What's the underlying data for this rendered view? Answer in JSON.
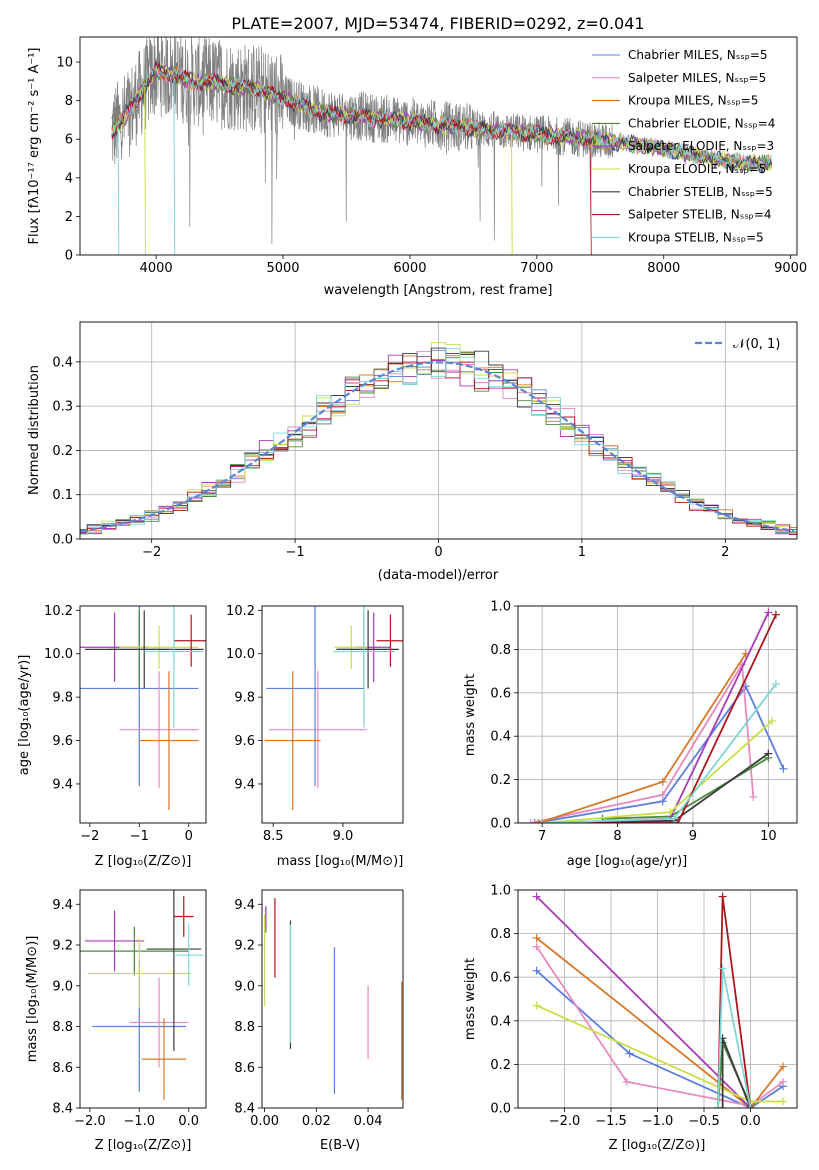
{
  "colors": {
    "chabrier_miles": "#5b7fe0",
    "salpeter_miles": "#e68ac0",
    "kroupa_miles": "#d8782a",
    "chabrier_elodie": "#4a8a3e",
    "salpeter_elodie": "#a93ab8",
    "kroupa_elodie": "#c9df4a",
    "chabrier_stelib": "#3b3b3b",
    "salpeter_stelib": "#b0141c",
    "kroupa_stelib": "#7fd6d6",
    "normal_curve": "#5b86d6"
  },
  "chart_data": [
    {
      "type": "line",
      "title": "PLATE=2007, MJD=53474, FIBERID=0292, z=0.041",
      "xlabel": "wavelength [Angstrom, rest frame]",
      "ylabel": "Flux [fλ10⁻¹⁷ erg cm⁻² s⁻¹ A⁻¹]",
      "xlim": [
        3400,
        9050
      ],
      "ylim": [
        0,
        11.3
      ],
      "xticks": [
        4000,
        5000,
        6000,
        7000,
        8000,
        9000
      ],
      "yticks": [
        0,
        2,
        4,
        6,
        8,
        10
      ],
      "grid": false,
      "legend_position": "top-right",
      "legend": [
        "Chabrier MILES, Nₛₛₚ=5",
        "Salpeter MILES, Nₛₛₚ=5",
        "Kroupa MILES, Nₛₛₚ=5",
        "Chabrier ELODIE, Nₛₛₚ=4",
        "Salpeter ELODIE, Nₛₛₚ=3",
        "Kroupa ELODIE, Nₛₛₚ=5",
        "Chabrier STELIB, Nₛₛₚ=5",
        "Salpeter STELIB, Nₛₛₚ=4",
        "Kroupa STELIB, Nₛₛₚ=5"
      ],
      "continuum": {
        "wavelength": [
          3650,
          3750,
          3900,
          4000,
          4100,
          4300,
          4500,
          4800,
          5000,
          5300,
          5600,
          6000,
          6300,
          6600,
          7000,
          7400,
          7700,
          8000,
          8300,
          8600,
          8850
        ],
        "flux": [
          6.4,
          7.1,
          8.6,
          9.6,
          9.4,
          9.0,
          8.9,
          8.6,
          8.1,
          7.4,
          7.2,
          6.9,
          6.7,
          6.5,
          6.3,
          6.0,
          5.8,
          5.5,
          5.1,
          4.8,
          4.7
        ]
      }
    },
    {
      "type": "line",
      "xlabel": "(data-model)/error",
      "ylabel": "Normed distribution",
      "xlim": [
        -2.5,
        2.5
      ],
      "ylim": [
        0,
        0.49
      ],
      "xticks": [
        -2,
        -1,
        0,
        1,
        2
      ],
      "yticks": [
        0.0,
        0.1,
        0.2,
        0.3,
        0.4
      ],
      "grid": true,
      "legend_position": "top-right",
      "legend": [
        "𝒩(0, 1)"
      ],
      "bin_width": 0.1
    },
    {
      "type": "scatter",
      "xlabel": "Z [log₁₀(Z/Z⊙)]",
      "ylabel": "age  [log₁₀(age/yr)]",
      "xlim": [
        -2.2,
        0.35
      ],
      "ylim": [
        9.22,
        10.22
      ],
      "xticks": [
        -2,
        -1,
        0
      ],
      "yticks": [
        9.4,
        9.6,
        9.8,
        10.0,
        10.2
      ],
      "grid": false,
      "crosses": [
        {
          "series": "chabrier_miles",
          "x": -1.0,
          "xerr": 1.2,
          "y": 9.84,
          "yerr": 0.45
        },
        {
          "series": "salpeter_miles",
          "x": -0.6,
          "xerr": 0.8,
          "y": 9.65,
          "yerr": 0.27
        },
        {
          "series": "kroupa_miles",
          "x": -0.4,
          "xerr": 0.6,
          "y": 9.6,
          "yerr": 0.32
        },
        {
          "series": "chabrier_elodie",
          "x": -1.0,
          "xerr": 0.6,
          "y": 10.02,
          "yerr": 0.18
        },
        {
          "series": "salpeter_elodie",
          "x": -1.5,
          "xerr": 0.7,
          "y": 10.03,
          "yerr": 0.16
        },
        {
          "series": "kroupa_elodie",
          "x": -0.6,
          "xerr": 0.8,
          "y": 10.03,
          "yerr": 0.1
        },
        {
          "series": "chabrier_stelib",
          "x": -0.9,
          "xerr": 1.2,
          "y": 10.02,
          "yerr": 0.18
        },
        {
          "series": "salpeter_stelib",
          "x": 0.05,
          "xerr": 0.35,
          "y": 10.06,
          "yerr": 0.12
        },
        {
          "series": "kroupa_stelib",
          "x": -0.3,
          "xerr": 0.6,
          "y": 10.01,
          "yerr": 0.35
        }
      ]
    },
    {
      "type": "scatter",
      "xlabel": "mass [log₁₀(M/M⊙)]",
      "xlim": [
        8.42,
        9.43
      ],
      "ylim": [
        9.22,
        10.22
      ],
      "xticks": [
        8.5,
        9.0
      ],
      "yticks": [
        9.4,
        9.6,
        9.8,
        10.0,
        10.2
      ],
      "grid": false,
      "crosses": [
        {
          "series": "chabrier_miles",
          "x": 8.8,
          "xerr": 0.35,
          "y": 9.84,
          "yerr": 0.45
        },
        {
          "series": "salpeter_miles",
          "x": 8.82,
          "xerr": 0.35,
          "y": 9.65,
          "yerr": 0.27
        },
        {
          "series": "kroupa_miles",
          "x": 8.64,
          "xerr": 0.2,
          "y": 9.6,
          "yerr": 0.32
        },
        {
          "series": "chabrier_elodie",
          "x": 9.15,
          "xerr": 0.2,
          "y": 10.02,
          "yerr": 0.18
        },
        {
          "series": "salpeter_elodie",
          "x": 9.22,
          "xerr": 0.12,
          "y": 10.03,
          "yerr": 0.16
        },
        {
          "series": "kroupa_elodie",
          "x": 9.06,
          "xerr": 0.12,
          "y": 10.03,
          "yerr": 0.1
        },
        {
          "series": "chabrier_stelib",
          "x": 9.18,
          "xerr": 0.22,
          "y": 10.02,
          "yerr": 0.18
        },
        {
          "series": "salpeter_stelib",
          "x": 9.34,
          "xerr": 0.1,
          "y": 10.06,
          "yerr": 0.12
        },
        {
          "series": "kroupa_stelib",
          "x": 9.15,
          "xerr": 0.22,
          "y": 10.01,
          "yerr": 0.35
        }
      ]
    },
    {
      "type": "line",
      "xlabel": "age  [log₁₀(age/yr)]",
      "ylabel": "mass weight",
      "xlim": [
        6.68,
        10.38
      ],
      "ylim": [
        0,
        1.0
      ],
      "xticks": [
        7,
        8,
        9,
        10
      ],
      "yticks": [
        0.0,
        0.2,
        0.4,
        0.6,
        0.8,
        1.0
      ],
      "grid": true,
      "series": [
        {
          "key": "chabrier_miles",
          "x": [
            6.9,
            8.6,
            9.7,
            10.2
          ],
          "y": [
            0.0,
            0.1,
            0.63,
            0.25
          ]
        },
        {
          "key": "salpeter_miles",
          "x": [
            6.85,
            8.6,
            9.65,
            9.8
          ],
          "y": [
            0.0,
            0.13,
            0.73,
            0.12
          ]
        },
        {
          "key": "kroupa_miles",
          "x": [
            6.95,
            8.6,
            9.7
          ],
          "y": [
            0.0,
            0.19,
            0.78
          ]
        },
        {
          "key": "chabrier_elodie",
          "x": [
            7.8,
            8.7,
            10.0
          ],
          "y": [
            0.02,
            0.03,
            0.3
          ]
        },
        {
          "key": "salpeter_elodie",
          "x": [
            7.0,
            8.7,
            10.0
          ],
          "y": [
            0.0,
            0.02,
            0.97
          ]
        },
        {
          "key": "kroupa_elodie",
          "x": [
            7.0,
            8.7,
            10.05
          ],
          "y": [
            0.0,
            0.05,
            0.47
          ]
        },
        {
          "key": "chabrier_stelib",
          "x": [
            7.0,
            8.75,
            10.0
          ],
          "y": [
            0.0,
            0.01,
            0.32
          ]
        },
        {
          "key": "salpeter_stelib",
          "x": [
            7.0,
            8.8,
            10.1
          ],
          "y": [
            0.0,
            0.0,
            0.96
          ]
        },
        {
          "key": "kroupa_stelib",
          "x": [
            7.0,
            8.75,
            10.1
          ],
          "y": [
            0.0,
            0.02,
            0.64
          ]
        }
      ]
    },
    {
      "type": "scatter",
      "xlabel": "Z [log₁₀(Z/Z⊙)]",
      "ylabel": "mass [log₁₀(M/M⊙)]",
      "xlim": [
        -2.2,
        0.35
      ],
      "ylim": [
        8.4,
        9.47
      ],
      "xticks": [
        -2,
        -1,
        0
      ],
      "yticks": [
        8.4,
        8.6,
        8.8,
        9.0,
        9.2,
        9.4
      ],
      "grid": false,
      "crosses": [
        {
          "series": "chabrier_miles",
          "x": -1.0,
          "xerr": 0.95,
          "y": 8.8,
          "yerr": 0.32
        },
        {
          "series": "salpeter_miles",
          "x": -0.6,
          "xerr": 0.6,
          "y": 8.82,
          "yerr": 0.22
        },
        {
          "series": "kroupa_miles",
          "x": -0.5,
          "xerr": 0.45,
          "y": 8.64,
          "yerr": 0.2
        },
        {
          "series": "chabrier_elodie",
          "x": -1.1,
          "xerr": 1.1,
          "y": 9.17,
          "yerr": 0.12
        },
        {
          "series": "salpeter_elodie",
          "x": -1.5,
          "xerr": 0.6,
          "y": 9.22,
          "yerr": 0.15
        },
        {
          "series": "kroupa_elodie",
          "x": -1.0,
          "xerr": 1.05,
          "y": 9.06,
          "yerr": 0.17
        },
        {
          "series": "chabrier_stelib",
          "x": -0.3,
          "xerr": 0.55,
          "y": 9.18,
          "yerr": 0.5
        },
        {
          "series": "salpeter_stelib",
          "x": -0.1,
          "xerr": 0.2,
          "y": 9.34,
          "yerr": 0.1
        },
        {
          "series": "kroupa_stelib",
          "x": 0.0,
          "xerr": 0.3,
          "y": 9.15,
          "yerr": 0.15
        }
      ]
    },
    {
      "type": "scatter",
      "xlabel": "E(B-V)",
      "xlim": [
        -0.001,
        0.0535
      ],
      "ylim": [
        8.4,
        9.47
      ],
      "xticks": [
        0.0,
        0.02,
        0.04
      ],
      "yticks": [
        8.4,
        8.6,
        8.8,
        9.0,
        9.2,
        9.4
      ],
      "grid": false,
      "vlines": [
        {
          "series": "chabrier_miles",
          "x": 0.027,
          "y0": 8.47,
          "y1": 9.19
        },
        {
          "series": "salpeter_miles",
          "x": 0.04,
          "y0": 8.64,
          "y1": 9.0
        },
        {
          "series": "kroupa_miles",
          "x": 0.053,
          "y0": 8.44,
          "y1": 9.02
        },
        {
          "series": "chabrier_elodie",
          "x": 0.0005,
          "y0": 9.26,
          "y1": 9.39
        },
        {
          "series": "salpeter_elodie",
          "x": 0.0005,
          "y0": 9.28,
          "y1": 9.39
        },
        {
          "series": "kroupa_elodie",
          "x": 0.0,
          "y0": 8.9,
          "y1": 9.35
        },
        {
          "series": "chabrier_stelib",
          "x": 0.01,
          "y0": 8.69,
          "y1": 9.32
        },
        {
          "series": "salpeter_stelib",
          "x": 0.004,
          "y0": 9.04,
          "y1": 9.43
        },
        {
          "series": "kroupa_stelib",
          "x": 0.01,
          "y0": 8.72,
          "y1": 9.3
        }
      ]
    },
    {
      "type": "line",
      "xlabel": "Z [log₁₀(Z/Z⊙)]",
      "ylabel": "mass weight",
      "xlim": [
        -2.5,
        0.5
      ],
      "ylim": [
        0,
        1.0
      ],
      "xticks": [
        -2.0,
        -1.5,
        -1.0,
        -0.5,
        0.0
      ],
      "yticks": [
        0.0,
        0.2,
        0.4,
        0.6,
        0.8,
        1.0
      ],
      "grid": true,
      "series": [
        {
          "key": "chabrier_miles",
          "x": [
            -2.3,
            -1.3,
            0.0,
            0.35
          ],
          "y": [
            0.63,
            0.25,
            0.0,
            0.1
          ]
        },
        {
          "key": "salpeter_miles",
          "x": [
            -2.3,
            -1.33,
            0.0,
            0.35
          ],
          "y": [
            0.74,
            0.12,
            0.01,
            0.12
          ]
        },
        {
          "key": "kroupa_miles",
          "x": [
            -2.3,
            0.0,
            0.35
          ],
          "y": [
            0.78,
            0.0,
            0.19
          ]
        },
        {
          "key": "chabrier_elodie",
          "x": [
            -0.35,
            -0.3,
            0.0
          ],
          "y": [
            0.0,
            0.3,
            0.01
          ]
        },
        {
          "key": "salpeter_elodie",
          "x": [
            -2.3,
            0.0
          ],
          "y": [
            0.97,
            0.0
          ]
        },
        {
          "key": "kroupa_elodie",
          "x": [
            -2.3,
            0.0,
            0.35
          ],
          "y": [
            0.47,
            0.03,
            0.03
          ]
        },
        {
          "key": "chabrier_stelib",
          "x": [
            -0.3,
            -0.3,
            0.0
          ],
          "y": [
            0.0,
            0.32,
            0.0
          ]
        },
        {
          "key": "salpeter_stelib",
          "x": [
            -0.35,
            -0.3,
            0.0
          ],
          "y": [
            0.0,
            0.97,
            0.0
          ]
        },
        {
          "key": "kroupa_stelib",
          "x": [
            -0.35,
            -0.3,
            0.0
          ],
          "y": [
            0.0,
            0.64,
            0.0
          ]
        }
      ]
    }
  ]
}
